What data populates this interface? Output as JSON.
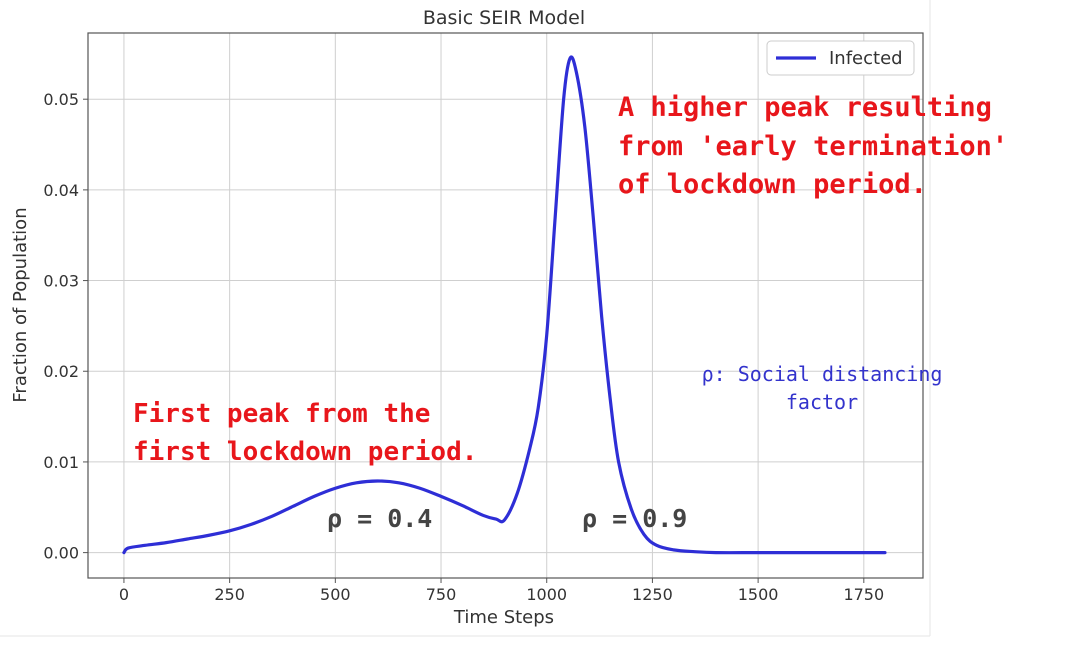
{
  "chart_data": {
    "type": "line",
    "title": "Basic SEIR Model",
    "xlabel": "Time Steps",
    "ylabel": "Fraction of Population",
    "xlim": [
      -85,
      1890
    ],
    "ylim": [
      -0.0028,
      0.0573
    ],
    "x_ticks": [
      "0",
      "250",
      "500",
      "750",
      "1000",
      "1250",
      "1500",
      "1750"
    ],
    "y_ticks": [
      "0.00",
      "0.01",
      "0.02",
      "0.03",
      "0.04",
      "0.05"
    ],
    "grid": true,
    "legend_position": "top-right",
    "series": [
      {
        "name": "Infected",
        "color": "#2e2ed6",
        "x": [
          0,
          10,
          50,
          100,
          150,
          200,
          250,
          300,
          350,
          400,
          450,
          500,
          550,
          600,
          650,
          700,
          750,
          800,
          850,
          880,
          900,
          930,
          960,
          980,
          1000,
          1020,
          1040,
          1055,
          1070,
          1090,
          1110,
          1130,
          1150,
          1170,
          1200,
          1230,
          1260,
          1300,
          1350,
          1400,
          1500,
          1600,
          1700,
          1800
        ],
        "y": [
          0.0,
          0.0005,
          0.0008,
          0.0011,
          0.0015,
          0.0019,
          0.0024,
          0.0031,
          0.004,
          0.0051,
          0.0062,
          0.0071,
          0.0077,
          0.0079,
          0.0077,
          0.0071,
          0.0062,
          0.0052,
          0.0041,
          0.0037,
          0.0036,
          0.0065,
          0.0115,
          0.016,
          0.024,
          0.037,
          0.05,
          0.0545,
          0.053,
          0.047,
          0.037,
          0.026,
          0.017,
          0.01,
          0.0048,
          0.002,
          0.0008,
          0.0003,
          0.0001,
          0.0,
          0.0,
          0.0,
          0.0,
          0.0
        ]
      }
    ]
  },
  "annotations": {
    "higher_peak": [
      "A higher peak resulting",
      "from 'early termination'",
      "of lockdown period."
    ],
    "first_peak": [
      "First peak from the",
      "first lockdown period."
    ],
    "rho_def": [
      "ρ: Social distancing",
      "factor"
    ],
    "rho_first": "ρ = 0.4",
    "rho_second": "ρ = 0.9"
  }
}
